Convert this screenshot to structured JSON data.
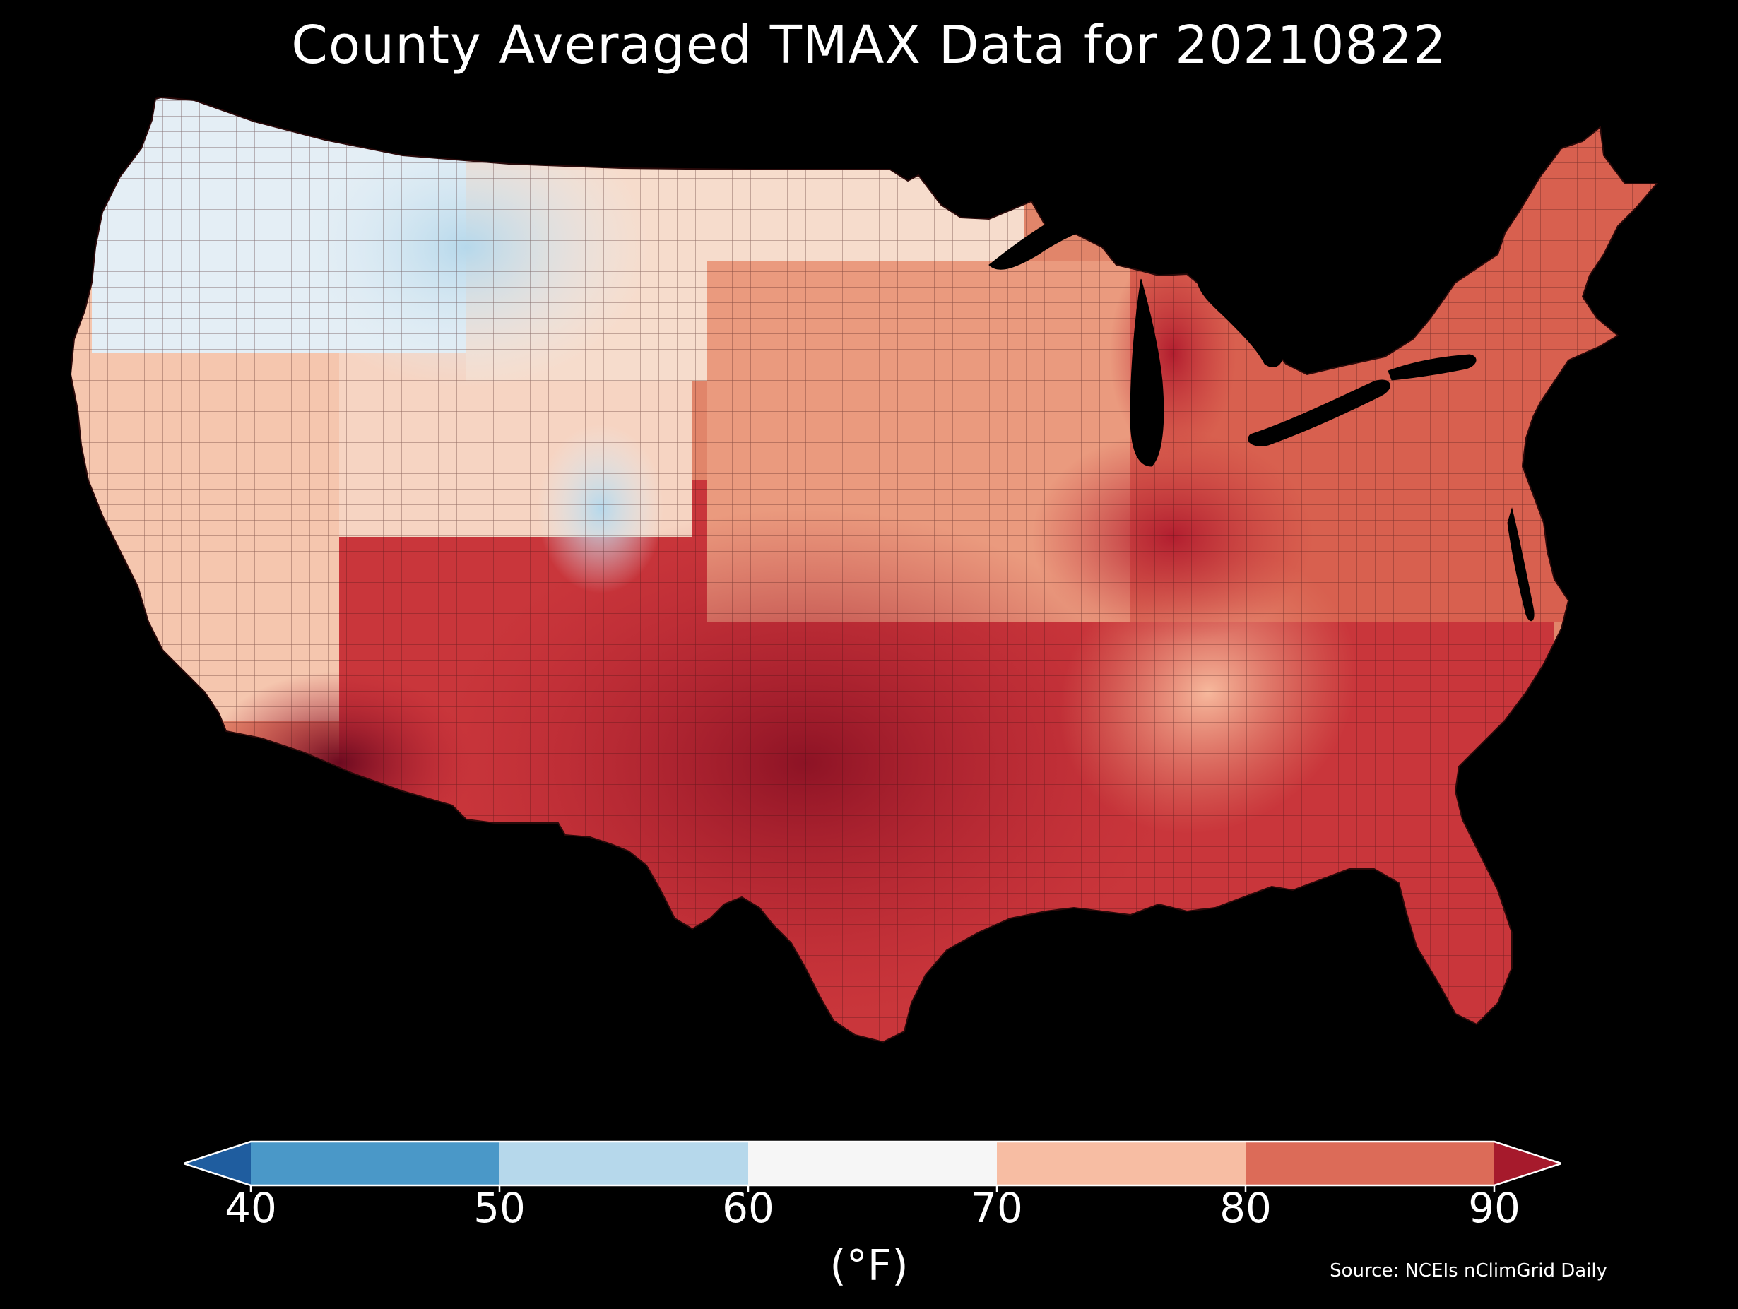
{
  "title": "County Averaged TMAX Data for 20210822",
  "colorbar": {
    "unit_label": "(°F)",
    "ticks": [
      "40",
      "50",
      "60",
      "70",
      "80",
      "90"
    ],
    "bins": [
      {
        "range": [
          40,
          50
        ],
        "color": "#4a98c8"
      },
      {
        "range": [
          50,
          60
        ],
        "color": "#b6d8eb"
      },
      {
        "range": [
          60,
          70
        ],
        "color": "#f6f6f6"
      },
      {
        "range": [
          70,
          80
        ],
        "color": "#f7bda3"
      },
      {
        "range": [
          80,
          90
        ],
        "color": "#dc6b58"
      }
    ],
    "under_color": "#1f5d9f",
    "over_color": "#a61a2c",
    "extend": "both"
  },
  "source": "Source: NCEIs nClimGrid Daily",
  "map": {
    "region": "Contiguous United States",
    "variable": "TMAX",
    "units": "°F",
    "unit_of_analysis": "county",
    "colormap": "RdBu_r"
  }
}
